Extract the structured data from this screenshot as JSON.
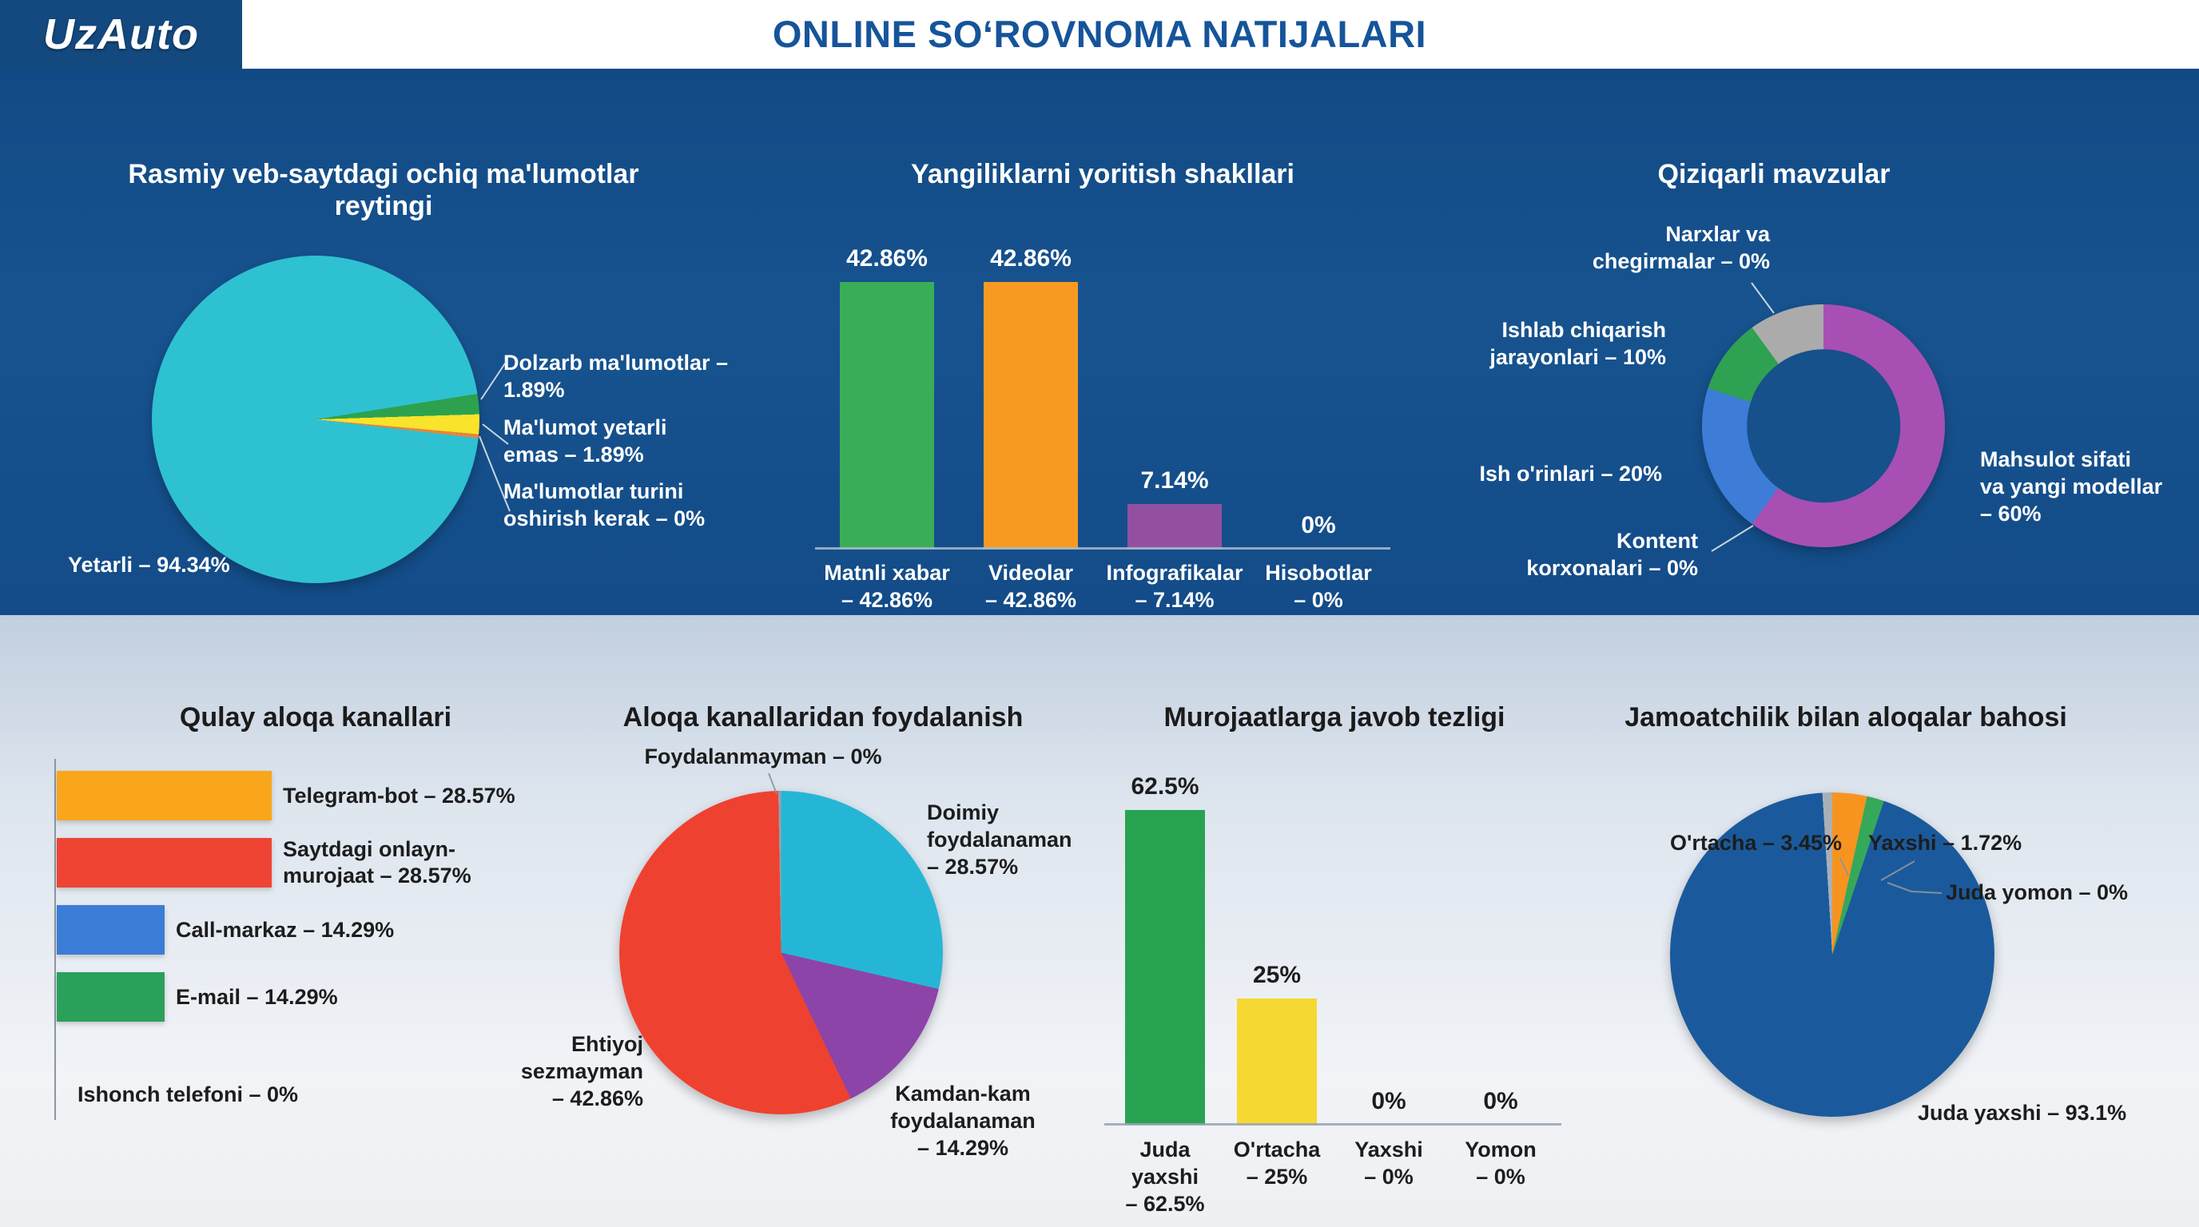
{
  "header": {
    "logo": "UzAuto",
    "title": "ONLINE SOʻROVNOMA NATIJALARI"
  },
  "theme": {
    "top_panel_bg": "#17538f",
    "bottom_panel_bg": "#e6ebf2",
    "header_text": "#16549a",
    "light_text": "#ffffff",
    "dark_text": "#1d1d1d"
  },
  "chart_data": [
    {
      "id": "rating",
      "type": "pie",
      "title": "Rasmiy veb-saytdagi ochiq ma'lumotlar reytingi",
      "slices": [
        {
          "label": "Yetarli",
          "pct": 94.34,
          "color": "#2ec1d2"
        },
        {
          "label": "Dolzarb ma'lumotlar",
          "pct": 1.89,
          "color": "#2ca24f"
        },
        {
          "label": "Ma'lumot yetarli emas",
          "pct": 1.89,
          "color": "#f9e32b"
        },
        {
          "label": "Ma'lumotlar turini oshirish kerak",
          "pct": 0,
          "color": "#e5853d"
        }
      ],
      "callouts": {
        "yetarli": "Yetarli – 94.34%",
        "dolzarb": "Dolzarb ma'lumotlar –\n1.89%",
        "yetarli_emas": "Ma'lumot yetarli\nemas – 1.89%",
        "turini": "Ma'lumotlar turini\noshirish kerak – 0%"
      },
      "render_arcs": [
        {
          "color": "#2ec1d2",
          "from": 0,
          "to": 81
        },
        {
          "color": "#2ca24f",
          "from": 81,
          "to": 88.2
        },
        {
          "color": "#f9e32b",
          "from": 88.2,
          "to": 95.2
        },
        {
          "color": "#e5853d",
          "from": 95.2,
          "to": 96.6
        },
        {
          "color": "#2ec1d2",
          "from": 96.6,
          "to": 360
        }
      ]
    },
    {
      "id": "news_formats",
      "type": "bar",
      "title": "Yangiliklarni yoritish shakllari",
      "categories": [
        "Matnli xabar",
        "Videolar",
        "Infografikalar",
        "Hisobotlar"
      ],
      "values": [
        42.86,
        42.86,
        7.14,
        0
      ],
      "value_labels": [
        "42.86%",
        "42.86%",
        "7.14%",
        "0%"
      ],
      "axis_labels": [
        "Matnli xabar\n– 42.86%",
        "Videolar\n– 42.86%",
        "Infografikalar\n– 7.14%",
        "Hisobotlar\n– 0%"
      ],
      "bar_colors": [
        "#3aad58",
        "#f89a22",
        "#9350a0",
        null
      ],
      "ylim": [
        0,
        46
      ],
      "grid": false
    },
    {
      "id": "topics",
      "type": "pie",
      "title": "Qiziqarli mavzular",
      "slices": [
        {
          "label": "Mahsulot sifati va yangi modellar",
          "pct": 60,
          "color": "#a84fb4"
        },
        {
          "label": "Ish o'rinlari",
          "pct": 20,
          "color": "#3d7cd7"
        },
        {
          "label": "Ishlab chiqarish jarayonlari",
          "pct": 10,
          "color": "#2fa152"
        },
        {
          "label": "Narxlar va chegirmalar",
          "pct": 0,
          "color": "#ababab"
        },
        {
          "label": "Kontent korxonalari",
          "pct": 0,
          "color": "#ababab"
        }
      ],
      "callouts": {
        "narxlar": "Narxlar va\nchegirmalar – 0%",
        "ishlab": "Ishlab chiqarish\njarayonlari – 10%",
        "ish_orinlari": "Ish o'rinlari – 20%",
        "kontent": "Kontent\nkorxonalari – 0%",
        "mahsulot": "Mahsulot sifati\nva yangi modellar\n– 60%"
      },
      "render_arcs": [
        {
          "color": "#a84fb4",
          "from": 0,
          "to": 216
        },
        {
          "color": "#3d7cd7",
          "from": 216,
          "to": 288
        },
        {
          "color": "#2fa152",
          "from": 288,
          "to": 324
        },
        {
          "color": "#ababab",
          "from": 324,
          "to": 360
        }
      ]
    },
    {
      "id": "channels",
      "type": "bar",
      "title": "Qulay aloqa kanallari",
      "categories": [
        "Telegram-bot",
        "Saytdagi onlayn-murojaat",
        "Call-markaz",
        "E-mail",
        "Ishonch telefoni"
      ],
      "values": [
        28.57,
        28.57,
        14.29,
        14.29,
        0
      ],
      "bar_colors": [
        "#f9a61a",
        "#ef4433",
        "#3b7cd6",
        "#2ba05b",
        null
      ],
      "bar_labels": [
        "Telegram-bot – 28.57%",
        "Saytdagi onlayn-\nmurojaat – 28.57%",
        "Call-markaz – 14.29%",
        "E-mail – 14.29%",
        "Ishonch telefoni – 0%"
      ],
      "xlim": [
        0,
        32
      ],
      "orientation": "horizontal"
    },
    {
      "id": "usage",
      "type": "pie",
      "title": "Aloqa kanallaridan foydalanish",
      "slices": [
        {
          "label": "Ehtiyoj sezmayman",
          "pct": 42.86,
          "color": "#ef4130"
        },
        {
          "label": "Doimiy foydalanaman",
          "pct": 28.57,
          "color": "#25b6d6"
        },
        {
          "label": "Kamdan-kam foydalanaman",
          "pct": 14.29,
          "color": "#8c44a8"
        },
        {
          "label": "Foydalanmayman",
          "pct": 0,
          "color": "#9aa0a6"
        }
      ],
      "callouts": {
        "foydalanmayman": "Foydalanmayman – 0%",
        "doimiy": "Doimiy\nfoydalanaman\n– 28.57%",
        "kamdan": "Kamdan-kam\nfoydalanaman\n– 14.29%",
        "ehtiyoj": "Ehtiyoj\nsezmayman\n– 42.86%"
      },
      "render_arcs": [
        {
          "color": "#25b6d6",
          "from": 0,
          "to": 103
        },
        {
          "color": "#8c44a8",
          "from": 103,
          "to": 154.5
        },
        {
          "color": "#ef4130",
          "from": 154.5,
          "to": 359
        },
        {
          "color": "#9aa0a6",
          "from": 359,
          "to": 360
        }
      ]
    },
    {
      "id": "response_speed",
      "type": "bar",
      "title": "Murojaatlarga javob tezligi",
      "categories": [
        "Juda yaxshi",
        "O'rtacha",
        "Yaxshi",
        "Yomon"
      ],
      "values": [
        62.5,
        25,
        0,
        0
      ],
      "value_labels": [
        "62.5%",
        "25%",
        "0%",
        "0%"
      ],
      "axis_labels": [
        "Juda yaxshi\n– 62.5%",
        "O'rtacha\n– 25%",
        "Yaxshi\n– 0%",
        "Yomon\n– 0%"
      ],
      "bar_colors": [
        "#28a351",
        "#f5d832",
        null,
        null
      ],
      "ylim": [
        0,
        64
      ],
      "grid": false
    },
    {
      "id": "pr_rating",
      "type": "pie",
      "title": "Jamoatchilik bilan aloqalar bahosi",
      "slices": [
        {
          "label": "Juda yaxshi",
          "pct": 93.1,
          "color": "#1a5a9c"
        },
        {
          "label": "O'rtacha",
          "pct": 3.45,
          "color": "#f79420"
        },
        {
          "label": "Yaxshi",
          "pct": 1.72,
          "color": "#36a85a"
        },
        {
          "label": "Juda yomon",
          "pct": 0,
          "color": "#a9afb6"
        }
      ],
      "callouts": {
        "ortacha": "O'rtacha – 3.45%",
        "yaxshi": "Yaxshi – 1.72%",
        "juda_yomon": "Juda yomon – 0%",
        "juda_yaxshi": "Juda yaxshi – 93.1%"
      },
      "render_arcs": [
        {
          "color": "#f79420",
          "from": 0,
          "to": 12.4
        },
        {
          "color": "#36a85a",
          "from": 12.4,
          "to": 18.6
        },
        {
          "color": "#1a5a9c",
          "from": 18.6,
          "to": 356.5
        },
        {
          "color": "#a9afb6",
          "from": 356.5,
          "to": 360
        }
      ]
    }
  ]
}
